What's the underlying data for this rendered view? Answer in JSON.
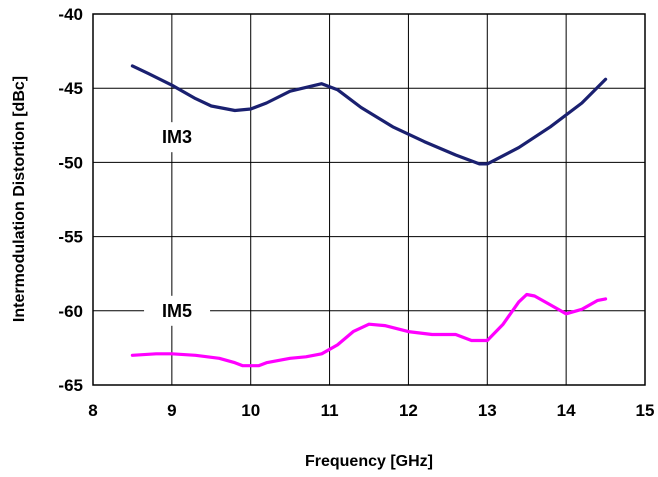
{
  "chart_data": {
    "type": "line",
    "xlabel": "Frequency [GHz]",
    "ylabel": "Intermodulation Distortion [dBc]",
    "xlim": [
      8,
      15
    ],
    "ylim": [
      -65,
      -40
    ],
    "xticks": [
      "8",
      "9",
      "10",
      "11",
      "12",
      "13",
      "14",
      "15"
    ],
    "yticks": [
      "-40",
      "-45",
      "-50",
      "-55",
      "-60",
      "-65"
    ],
    "grid": true,
    "legend": "none",
    "series": [
      {
        "name": "IM3",
        "color": "#1a2070",
        "x": [
          8.5,
          8.7,
          9.0,
          9.3,
          9.5,
          9.8,
          10.0,
          10.2,
          10.5,
          10.9,
          11.1,
          11.4,
          11.8,
          12.2,
          12.6,
          12.9,
          13.0,
          13.4,
          13.8,
          14.2,
          14.5
        ],
        "y": [
          -43.5,
          -44.0,
          -44.8,
          -45.7,
          -46.2,
          -46.5,
          -46.4,
          -46.0,
          -45.2,
          -44.7,
          -45.1,
          -46.3,
          -47.6,
          -48.6,
          -49.5,
          -50.1,
          -50.1,
          -49.0,
          -47.6,
          -46.0,
          -44.4
        ]
      },
      {
        "name": "IM5",
        "color": "#ff00ff",
        "x": [
          8.5,
          8.8,
          9.0,
          9.3,
          9.6,
          9.8,
          9.9,
          10.1,
          10.2,
          10.5,
          10.7,
          10.9,
          11.1,
          11.3,
          11.5,
          11.7,
          12.0,
          12.3,
          12.6,
          12.8,
          13.0,
          13.2,
          13.4,
          13.5,
          13.6,
          13.8,
          14.0,
          14.2,
          14.4,
          14.5
        ],
        "y": [
          -63.0,
          -62.9,
          -62.9,
          -63.0,
          -63.2,
          -63.5,
          -63.7,
          -63.7,
          -63.5,
          -63.2,
          -63.1,
          -62.9,
          -62.3,
          -61.4,
          -60.9,
          -61.0,
          -61.4,
          -61.6,
          -61.6,
          -62.0,
          -62.0,
          -60.9,
          -59.4,
          -58.9,
          -59.0,
          -59.6,
          -60.2,
          -59.9,
          -59.3,
          -59.2
        ]
      }
    ],
    "annotations": [
      {
        "text": "IM3",
        "series": "IM3"
      },
      {
        "text": "IM5",
        "series": "IM5"
      }
    ]
  }
}
